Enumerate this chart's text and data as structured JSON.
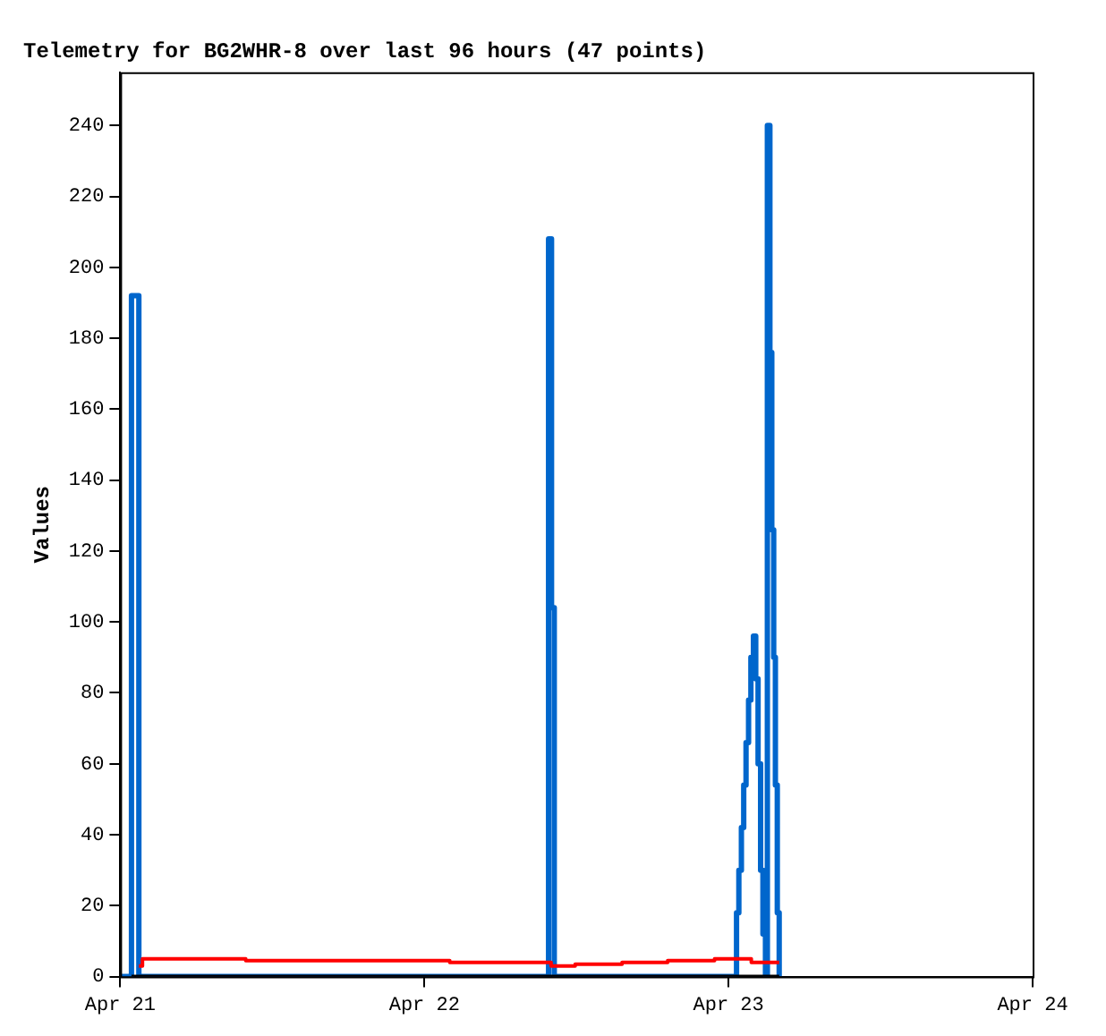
{
  "chart_data": {
    "type": "step",
    "title": "Telemetry for BG2WHR-8 over last 96 hours (47 points)",
    "ylabel": "Values",
    "xlim": [
      "--04-21T00:00",
      "--04-24T00:00"
    ],
    "xticks": [
      {
        "value": "--04-21T00:00",
        "label": "Apr 21"
      },
      {
        "value": "--04-22T00:00",
        "label": "Apr 22"
      },
      {
        "value": "--04-23T00:00",
        "label": "Apr 23"
      },
      {
        "value": "--04-24T00:00",
        "label": "Apr 24"
      }
    ],
    "ylim": [
      0,
      255
    ],
    "yticks": [
      0,
      20,
      40,
      60,
      80,
      100,
      120,
      140,
      160,
      180,
      200,
      220,
      240
    ],
    "series": [
      {
        "color": "#000000",
        "x": [
          "--04-21T00:53",
          "--04-23T04:00"
        ],
        "values": [
          0,
          0
        ]
      },
      {
        "color": "#ff0000",
        "x": [
          "--04-21T01:28",
          "--04-21T01:45",
          "--04-21T09:54",
          "--04-22T02:00",
          "--04-22T10:00",
          "--04-22T11:54",
          "--04-22T15:36",
          "--04-22T19:12",
          "--04-22T22:54",
          "--04-23T01:48",
          "--04-23T04:00"
        ],
        "values": [
          3,
          5,
          4.5,
          4,
          3,
          3.5,
          4,
          4.5,
          5,
          4,
          4
        ]
      },
      {
        "color": "#0066cc",
        "x": [
          "--04-21T00:00",
          "--04-21T00:53",
          "--04-21T01:28",
          "--04-22T09:48",
          "--04-22T10:02",
          "--04-22T10:15",
          "--04-23T00:38",
          "--04-23T00:49",
          "--04-23T01:01",
          "--04-23T01:12",
          "--04-23T01:23",
          "--04-23T01:35",
          "--04-23T01:46",
          "--04-23T01:58",
          "--04-23T02:09",
          "--04-23T02:20",
          "--04-23T02:32",
          "--04-23T02:43",
          "--04-23T02:55",
          "--04-23T03:04",
          "--04-23T03:16",
          "--04-23T03:25",
          "--04-23T03:34",
          "--04-23T03:42",
          "--04-23T03:51",
          "--04-23T04:00"
        ],
        "values": [
          0,
          192,
          0,
          208,
          104,
          0,
          18,
          30,
          42,
          54,
          66,
          78,
          90,
          96,
          84,
          60,
          30,
          12,
          0,
          240,
          176,
          126,
          90,
          54,
          18,
          0
        ]
      }
    ]
  }
}
